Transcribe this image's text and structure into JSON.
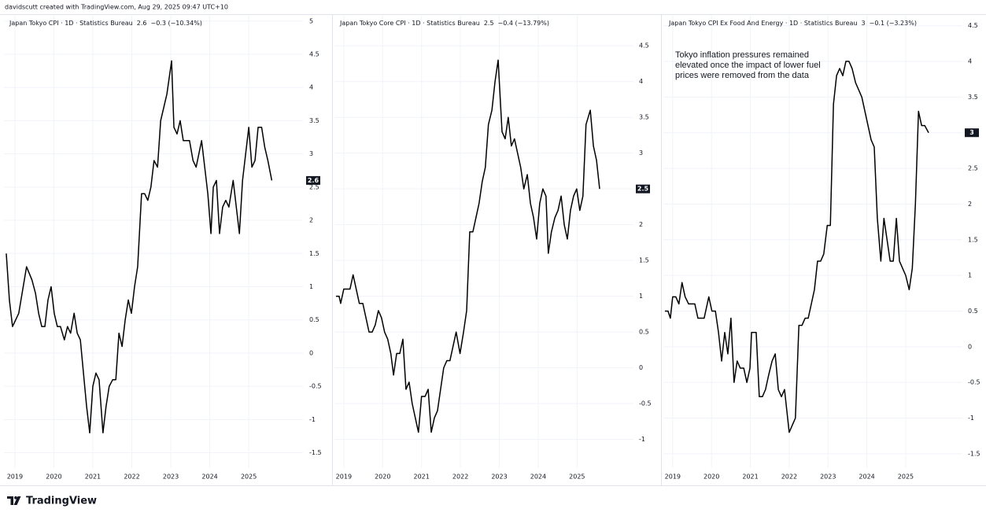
{
  "header": "davidscutt created with TradingView.com, Aug 29, 2025 09:47 UTC+10",
  "footer": "TradingView",
  "chart_data": [
    {
      "type": "line",
      "title": "Japan Tokyo CPI · 1D · Statistics Bureau",
      "last_value": 2.6,
      "change": "−0.3 (−10.34%)",
      "color": "#000000",
      "grid": true,
      "xlim": [
        2018.72,
        2026.39
      ],
      "xticks": [
        2019,
        2020,
        2021,
        2022,
        2023,
        2024,
        2025
      ],
      "ylim": [
        -1.73,
        5.08
      ],
      "yticks": [
        5,
        4.5,
        4,
        3.5,
        3,
        2.5,
        2,
        1.5,
        1,
        0.5,
        0,
        -0.5,
        -1,
        -1.5
      ],
      "x": [
        2018.78,
        2018.86,
        2018.94,
        2019.1,
        2019.3,
        2019.44,
        2019.53,
        2019.61,
        2019.69,
        2019.77,
        2019.85,
        2019.93,
        2020.01,
        2020.09,
        2020.17,
        2020.27,
        2020.35,
        2020.43,
        2020.52,
        2020.6,
        2020.68,
        2020.76,
        2020.84,
        2020.92,
        2021.0,
        2021.08,
        2021.16,
        2021.26,
        2021.34,
        2021.42,
        2021.51,
        2021.59,
        2021.67,
        2021.75,
        2021.83,
        2021.91,
        2021.99,
        2022.07,
        2022.15,
        2022.25,
        2022.33,
        2022.41,
        2022.49,
        2022.57,
        2022.66,
        2022.74,
        2022.82,
        2022.9,
        2023.02,
        2023.08,
        2023.16,
        2023.24,
        2023.32,
        2023.48,
        2023.57,
        2023.65,
        2023.79,
        2023.89,
        2023.95,
        2024.03,
        2024.09,
        2024.17,
        2024.25,
        2024.33,
        2024.41,
        2024.49,
        2024.6,
        2024.68,
        2024.76,
        2024.84,
        2025.0,
        2025.08,
        2025.16,
        2025.24,
        2025.33,
        2025.41,
        2025.49,
        2025.59
      ],
      "values": [
        1.5,
        0.8,
        0.4,
        0.6,
        1.3,
        1.1,
        0.9,
        0.6,
        0.4,
        0.4,
        0.8,
        1.0,
        0.6,
        0.4,
        0.4,
        0.2,
        0.4,
        0.3,
        0.6,
        0.3,
        0.2,
        -0.3,
        -0.8,
        -1.2,
        -0.5,
        -0.3,
        -0.4,
        -1.2,
        -0.8,
        -0.5,
        -0.4,
        -0.4,
        0.3,
        0.1,
        0.5,
        0.8,
        0.6,
        1.0,
        1.3,
        2.4,
        2.4,
        2.3,
        2.5,
        2.9,
        2.8,
        3.5,
        3.7,
        3.9,
        4.4,
        3.4,
        3.3,
        3.5,
        3.2,
        3.2,
        2.9,
        2.8,
        3.2,
        2.7,
        2.4,
        1.8,
        2.5,
        2.6,
        1.8,
        2.2,
        2.3,
        2.2,
        2.6,
        2.2,
        1.8,
        2.6,
        3.4,
        2.8,
        2.9,
        3.4,
        3.4,
        3.1,
        2.9,
        2.6
      ]
    },
    {
      "type": "line",
      "title": "Japan Tokyo Core CPI · 1D · Statistics Bureau",
      "last_value": 2.5,
      "change": "−0.4 (−13.79%)",
      "color": "#000000",
      "grid": true,
      "xlim": [
        2018.76,
        2026.45
      ],
      "xticks": [
        2019,
        2020,
        2021,
        2022,
        2023,
        2024,
        2025
      ],
      "ylim": [
        -1.4,
        4.92
      ],
      "yticks": [
        4.5,
        4,
        3.5,
        3,
        2.5,
        2,
        1.5,
        1,
        0.5,
        0,
        -0.5,
        -1
      ],
      "x": [
        2018.8,
        2018.88,
        2018.92,
        2019.0,
        2019.16,
        2019.24,
        2019.32,
        2019.4,
        2019.49,
        2019.57,
        2019.65,
        2019.73,
        2019.81,
        2019.89,
        2019.97,
        2020.05,
        2020.13,
        2020.21,
        2020.28,
        2020.36,
        2020.44,
        2020.52,
        2020.6,
        2020.68,
        2020.76,
        2020.84,
        2020.92,
        2021.0,
        2021.09,
        2021.17,
        2021.25,
        2021.33,
        2021.41,
        2021.49,
        2021.57,
        2021.65,
        2021.73,
        2021.81,
        2021.89,
        2021.99,
        2022.08,
        2022.16,
        2022.24,
        2022.32,
        2022.4,
        2022.48,
        2022.56,
        2022.64,
        2022.72,
        2022.81,
        2022.89,
        2022.97,
        2023.07,
        2023.15,
        2023.23,
        2023.31,
        2023.39,
        2023.47,
        2023.55,
        2023.63,
        2023.72,
        2023.8,
        2023.88,
        2023.96,
        2024.04,
        2024.12,
        2024.2,
        2024.26,
        2024.34,
        2024.43,
        2024.51,
        2024.59,
        2024.67,
        2024.75,
        2024.83,
        2024.91,
        2024.99,
        2025.07,
        2025.15,
        2025.23,
        2025.34,
        2025.42,
        2025.5,
        2025.58
      ],
      "values": [
        1.0,
        1.0,
        0.9,
        1.1,
        1.1,
        1.3,
        1.1,
        0.9,
        0.9,
        0.7,
        0.5,
        0.5,
        0.6,
        0.8,
        0.7,
        0.5,
        0.4,
        0.2,
        -0.1,
        0.2,
        0.2,
        0.4,
        -0.3,
        -0.2,
        -0.5,
        -0.7,
        -0.9,
        -0.4,
        -0.4,
        -0.3,
        -0.9,
        -0.7,
        -0.6,
        -0.3,
        0.0,
        0.1,
        0.1,
        0.3,
        0.5,
        0.2,
        0.5,
        0.8,
        1.9,
        1.9,
        2.1,
        2.3,
        2.6,
        2.8,
        3.4,
        3.6,
        4.0,
        4.3,
        3.3,
        3.2,
        3.5,
        3.1,
        3.2,
        3.0,
        2.8,
        2.5,
        2.7,
        2.3,
        2.1,
        1.8,
        2.3,
        2.5,
        2.4,
        1.6,
        1.9,
        2.1,
        2.2,
        2.4,
        2.0,
        1.8,
        2.2,
        2.4,
        2.5,
        2.2,
        2.4,
        3.4,
        3.6,
        3.1,
        2.9,
        2.5
      ]
    },
    {
      "type": "line",
      "title": "Japan Tokyo CPI Ex Food And Energy · 1D · Statistics Bureau",
      "last_value": 3,
      "change": "−0.1 (−3.23%)",
      "color": "#000000",
      "grid": true,
      "annotation": [
        "Tokyo inflation pressures remained",
        "elevated once the impact of lower fuel",
        "prices were removed from the data"
      ],
      "xlim": [
        2018.76,
        2026.46
      ],
      "xticks": [
        2019,
        2020,
        2021,
        2022,
        2023,
        2024,
        2025
      ],
      "ylim": [
        -1.7,
        4.64
      ],
      "yticks": [
        4.5,
        4,
        3.5,
        3,
        2.5,
        2,
        1.5,
        1,
        0.5,
        0,
        -0.5,
        -1,
        -1.5
      ],
      "x": [
        2018.8,
        2018.88,
        2018.94,
        2019.0,
        2019.08,
        2019.16,
        2019.24,
        2019.32,
        2019.41,
        2019.49,
        2019.57,
        2019.65,
        2019.73,
        2019.81,
        2019.93,
        2020.01,
        2020.1,
        2020.18,
        2020.26,
        2020.34,
        2020.42,
        2020.5,
        2020.58,
        2020.66,
        2020.74,
        2020.83,
        2020.91,
        2020.99,
        2021.03,
        2021.15,
        2021.23,
        2021.31,
        2021.39,
        2021.47,
        2021.56,
        2021.64,
        2021.72,
        2021.8,
        2021.88,
        2022.0,
        2022.08,
        2022.16,
        2022.25,
        2022.33,
        2022.41,
        2022.49,
        2022.57,
        2022.65,
        2022.73,
        2022.81,
        2022.89,
        2022.98,
        2023.06,
        2023.14,
        2023.22,
        2023.3,
        2023.38,
        2023.46,
        2023.54,
        2023.62,
        2023.71,
        2023.79,
        2023.87,
        2023.95,
        2024.03,
        2024.11,
        2024.19,
        2024.27,
        2024.36,
        2024.44,
        2024.52,
        2024.6,
        2024.68,
        2024.76,
        2024.84,
        2024.92,
        2025.0,
        2025.09,
        2025.17,
        2025.25,
        2025.33,
        2025.41,
        2025.49,
        2025.59
      ],
      "values": [
        0.5,
        0.5,
        0.4,
        0.7,
        0.7,
        0.6,
        0.9,
        0.7,
        0.6,
        0.6,
        0.6,
        0.4,
        0.4,
        0.4,
        0.7,
        0.5,
        0.5,
        0.2,
        -0.2,
        0.2,
        -0.1,
        0.4,
        -0.5,
        -0.2,
        -0.3,
        -0.3,
        -0.5,
        -0.3,
        0.2,
        0.2,
        -0.7,
        -0.7,
        -0.6,
        -0.4,
        -0.2,
        -0.1,
        -0.6,
        -0.7,
        -0.6,
        -1.2,
        -1.1,
        -1.0,
        0.3,
        0.3,
        0.4,
        0.4,
        0.6,
        0.8,
        1.2,
        1.2,
        1.3,
        1.7,
        1.7,
        3.4,
        3.8,
        3.9,
        3.8,
        4.0,
        4.0,
        3.9,
        3.7,
        3.6,
        3.5,
        3.3,
        3.1,
        2.9,
        2.8,
        1.8,
        1.2,
        1.8,
        1.5,
        1.2,
        1.2,
        1.8,
        1.2,
        1.1,
        1.0,
        0.8,
        1.1,
        2.0,
        3.3,
        3.1,
        3.1,
        3.0
      ]
    }
  ]
}
